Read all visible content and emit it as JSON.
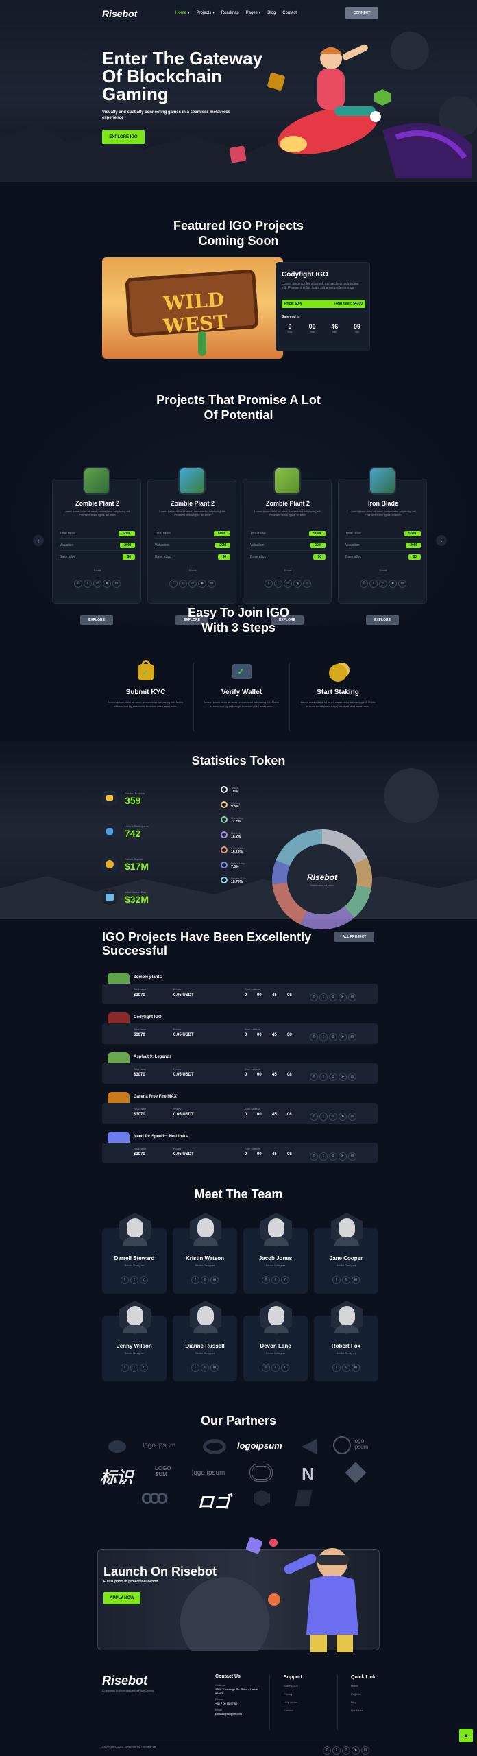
{
  "nav": {
    "logo": "Risebot",
    "items": [
      "Home",
      "Projects",
      "Roadmap",
      "Pages",
      "Blog",
      "Contact"
    ],
    "connect": "CONNECT"
  },
  "hero": {
    "title_line1": "Enter The Gateway",
    "title_line2": "Of Blockchain",
    "title_line3": "Gaming",
    "subtitle": "Visually and spatially connecting games in a seamless metaverse experience",
    "cta": "EXPLORE IGO"
  },
  "featured": {
    "title_line1": "Featured IGO Projects",
    "title_line2": "Coming Soon",
    "image_text": "WILD WEST",
    "card_title": "Codyfight IGO",
    "card_desc": "Lorem ipsum dolor sit amet, consectetur adipiscing elit. Praesent tellus ligula, sit amet pellentesque",
    "price": "Price: $0.4",
    "total_raise": "Total raise: $4700",
    "sale_end": "Sale end in",
    "countdown": [
      {
        "value": "0",
        "label": "Day"
      },
      {
        "value": "00",
        "label": "Hrs"
      },
      {
        "value": "46",
        "label": "Min"
      },
      {
        "value": "09",
        "label": "Sec"
      }
    ]
  },
  "projects": {
    "title_line1": "Projects That Promise A Lot",
    "title_line2": "Of Potential",
    "cards": [
      {
        "name": "Zombie Plant 2",
        "desc": "Lorem ipsum dolor sit amet, consectetur adipiscing elit. Praesent tellus ligula, sit amet",
        "rows": [
          {
            "label": "Total raise",
            "value": "500K"
          },
          {
            "label": "Valuation",
            "value": "20M"
          },
          {
            "label": "Base alloc",
            "value": "$0"
          }
        ],
        "social": "Social",
        "btn": "EXPLORE"
      },
      {
        "name": "Zombie Plant 2",
        "desc": "Lorem ipsum dolor sit amet, consectetur adipiscing elit. Praesent tellus ligula, sit amet",
        "rows": [
          {
            "label": "Total raise",
            "value": "500K"
          },
          {
            "label": "Valuation",
            "value": "20M"
          },
          {
            "label": "Base alloc",
            "value": "$0"
          }
        ],
        "social": "Social",
        "btn": "EXPLORE"
      },
      {
        "name": "Zombie Plant 2",
        "desc": "Lorem ipsum dolor sit amet, consectetur adipiscing elit. Praesent tellus ligula, sit amet",
        "rows": [
          {
            "label": "Total raise",
            "value": "500K"
          },
          {
            "label": "Valuation",
            "value": "20M"
          },
          {
            "label": "Base alloc",
            "value": "$0"
          }
        ],
        "social": "Social",
        "btn": "EXPLORE"
      },
      {
        "name": "Iron Blade",
        "desc": "Lorem ipsum dolor sit amet, consectetur adipiscing elit. Praesent tellus ligula, sit amet",
        "rows": [
          {
            "label": "Total raise",
            "value": "500K"
          },
          {
            "label": "Valuation",
            "value": "20M"
          },
          {
            "label": "Base alloc",
            "value": "$0"
          }
        ],
        "social": "Social",
        "btn": "EXPLORE"
      }
    ]
  },
  "steps": {
    "title_line1": "Easy To Join IGO",
    "title_line2": "With 3 Steps",
    "items": [
      {
        "title": "Submit KYC",
        "desc": "Lorem ipsum dolor sit amet, consectetur adipiscing elit. Mollis et nunc non ligula suscipit tincidunt at sit amet nunc."
      },
      {
        "title": "Verify Wallet",
        "desc": "Lorem ipsum dolor sit amet, consectetur adipiscing elit. Mollis et nunc non ligula suscipit tincidunt at sit amet nunc."
      },
      {
        "title": "Start Staking",
        "desc": "Lorem ipsum dolor sit amet, consectetur adipiscing elit. Mollis et nunc non ligula suscipit tincidunt at sit amet nunc."
      }
    ]
  },
  "stats": {
    "title": "Statistics Token",
    "items": [
      {
        "label": "Funded Projects",
        "value": "359"
      },
      {
        "label": "Unique Participants",
        "value": "742"
      },
      {
        "label": "Raised Capital",
        "value": "$17M"
      },
      {
        "label": "Initial Market Cap",
        "value": "$32M"
      }
    ],
    "legend": [
      {
        "name": "Team",
        "pct": "18%",
        "color": "#e5e7eb"
      },
      {
        "name": "Staking",
        "pct": "9.8%",
        "color": "#f0c27a"
      },
      {
        "name": "Marketing",
        "pct": "11.2%",
        "color": "#86d3a7"
      },
      {
        "name": "Liquidity",
        "pct": "18.2%",
        "color": "#a88ee8"
      },
      {
        "name": "Ecosystem",
        "pct": "16.25%",
        "color": "#f08a7a"
      },
      {
        "name": "Partnership",
        "pct": "7.8%",
        "color": "#7b8cf0"
      },
      {
        "name": "Private Sale",
        "pct": "18.75%",
        "color": "#8fd3e8"
      }
    ],
    "donut_logo": "Risebot",
    "donut_sub": "Distribution of token"
  },
  "successful": {
    "title_line1": "IGO Projects Have Been Excellently",
    "title_line2": "Successful",
    "all_btn": "ALL PROJECT",
    "rows": [
      {
        "name": "Zombie plant 2",
        "raise_label": "Total raise",
        "raise": "$3070",
        "price_label": "Prices",
        "price": "0.05 USDT",
        "ends_label": "Start sales in",
        "d": "0",
        "h": "00",
        "m": "45",
        "s": "08"
      },
      {
        "name": "Codyfight IGO",
        "raise_label": "Total raise",
        "raise": "$3070",
        "price_label": "Prices",
        "price": "0.05 USDT",
        "ends_label": "Start sales in",
        "d": "0",
        "h": "00",
        "m": "45",
        "s": "08"
      },
      {
        "name": "Asphalt 9: Legends",
        "raise_label": "Total raise",
        "raise": "$3070",
        "price_label": "Prices",
        "price": "0.05 USDT",
        "ends_label": "Start sales in",
        "d": "0",
        "h": "00",
        "m": "45",
        "s": "08"
      },
      {
        "name": "Garena Free Fire MAX",
        "raise_label": "Total raise",
        "raise": "$3070",
        "price_label": "Prices",
        "price": "0.05 USDT",
        "ends_label": "Start sales in",
        "d": "0",
        "h": "00",
        "m": "45",
        "s": "08"
      },
      {
        "name": "Need for Speed™ No Limits",
        "raise_label": "Total raise",
        "raise": "$3070",
        "price_label": "Prices",
        "price": "0.05 USDT",
        "ends_label": "Start sales in",
        "d": "0",
        "h": "00",
        "m": "45",
        "s": "08"
      }
    ]
  },
  "team": {
    "title": "Meet The Team",
    "members": [
      {
        "name": "Darrell Steward",
        "role": "Senior Designer"
      },
      {
        "name": "Kristin Watson",
        "role": "Senior Designer"
      },
      {
        "name": "Jacob Jones",
        "role": "Senior Designer"
      },
      {
        "name": "Jane Cooper",
        "role": "Senior Designer"
      },
      {
        "name": "Jenny Wilson",
        "role": "Senior Designer"
      },
      {
        "name": "Dianne Russell",
        "role": "Senior Designer"
      },
      {
        "name": "Devon Lane",
        "role": "Senior Designer"
      },
      {
        "name": "Robert Fox",
        "role": "Senior Designer"
      }
    ]
  },
  "partners": {
    "title": "Our Partners",
    "logos": [
      "logo ipsum",
      "logoipsum",
      "logo ipsum",
      "标识",
      "LOGO SUM",
      "logo ipsum",
      "ロゴ"
    ]
  },
  "launch": {
    "title": "Launch On Risebot",
    "subtitle": "Full support in project incubation",
    "cta": "APPLY NOW"
  },
  "footer": {
    "logo": "Risebot",
    "tagline": "A new way to decentralize for PlateGaming",
    "contact_title": "Contact Us",
    "address_label": "Address",
    "address": "9807 Thornridge Cir. Shiloh, Hawaii 81063",
    "phone_label": "Phone",
    "phone": "+88 7 00 55 57 60",
    "email_label": "Email",
    "email": "contact@support.com",
    "support_title": "Support",
    "support_links": [
      "Submit IGO",
      "Pricing",
      "Help center",
      "Contact"
    ],
    "quick_title": "Quick Link",
    "quick_links": [
      "Home",
      "Projects",
      "Blog",
      "Our News"
    ],
    "copyright": "Copyright © 2022. Designed by ThemesFlat"
  }
}
